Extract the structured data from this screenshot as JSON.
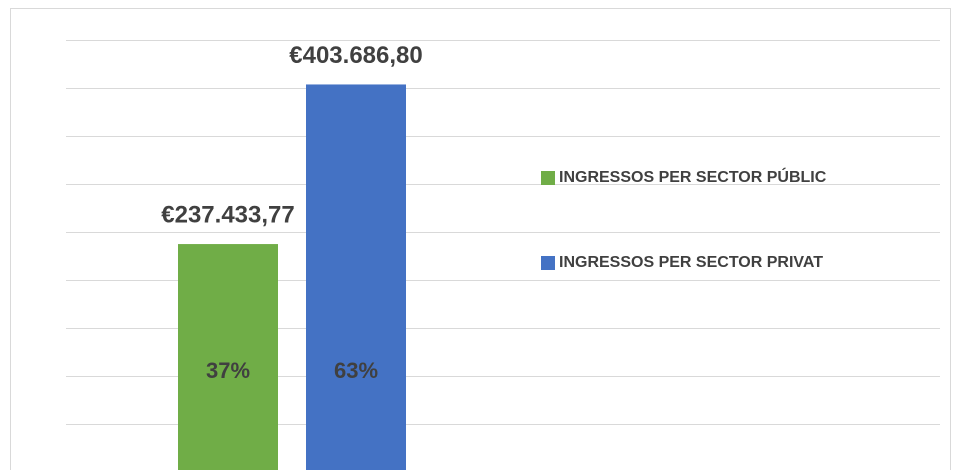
{
  "chart_data": {
    "type": "bar",
    "categories": [
      null
    ],
    "series": [
      {
        "name": "INGRESSOS PER SECTOR PÚBLIC",
        "color": "#70ad47",
        "values": [
          237433.77
        ],
        "value_labels": [
          "€237.433,77"
        ],
        "shares": [
          37
        ],
        "share_labels": [
          "37%"
        ]
      },
      {
        "name": "INGRESSOS PER SECTOR PRIVAT",
        "color": "#4472c4",
        "values": [
          403686.8
        ],
        "value_labels": [
          "€403.686,80"
        ],
        "shares": [
          63
        ],
        "share_labels": [
          "63%"
        ]
      }
    ],
    "ylim": [
      0,
      450000
    ],
    "yticks": [
      0,
      50000,
      100000,
      150000,
      200000,
      250000,
      300000,
      350000,
      400000,
      450000
    ],
    "grid": true,
    "legend": "right"
  }
}
